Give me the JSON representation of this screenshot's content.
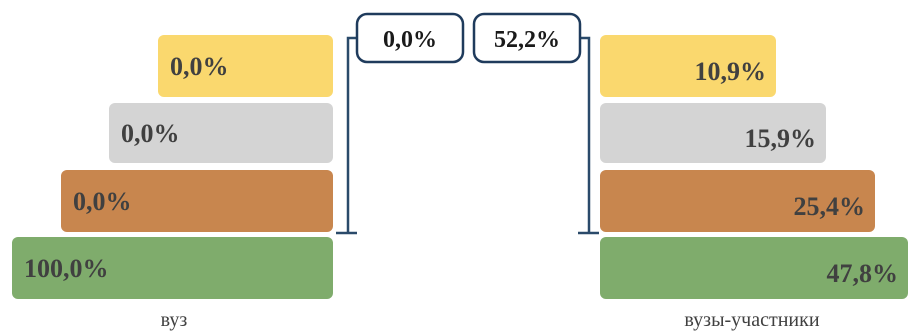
{
  "chart_data": [
    {
      "type": "bar",
      "orientation": "horizontal-stacked-pyramid",
      "categories": [
        "level-1",
        "level-2",
        "level-3",
        "level-4"
      ],
      "colors": [
        "#fad86e",
        "#d4d4d4",
        "#c8864e",
        "#7fac6c"
      ],
      "values": [
        0.0,
        0.0,
        0.0,
        100.0
      ],
      "labels": [
        "0,0%",
        "0,0%",
        "0,0%",
        "100,0%"
      ],
      "callout": "0,0%",
      "xlabel": "вуз"
    },
    {
      "type": "bar",
      "orientation": "horizontal-stacked-pyramid",
      "categories": [
        "level-1",
        "level-2",
        "level-3",
        "level-4"
      ],
      "colors": [
        "#fad86e",
        "#d4d4d4",
        "#c8864e",
        "#7fac6c"
      ],
      "values": [
        10.9,
        15.9,
        25.4,
        47.8
      ],
      "labels": [
        "10,9%",
        "15,9%",
        "25,4%",
        "47,8%"
      ],
      "callout": "52,2%",
      "xlabel": "вузы-участники"
    }
  ],
  "style": {
    "callout_border": "#1f3b5c",
    "bracket_color": "#2a4a6a"
  }
}
